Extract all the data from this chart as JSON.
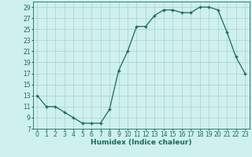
{
  "x": [
    0,
    1,
    2,
    3,
    4,
    5,
    6,
    7,
    8,
    9,
    10,
    11,
    12,
    13,
    14,
    15,
    16,
    17,
    18,
    19,
    20,
    21,
    22,
    23
  ],
  "y": [
    13,
    11,
    11,
    10,
    9,
    8,
    8,
    8,
    10.5,
    17.5,
    21,
    25.5,
    25.5,
    27.5,
    28.5,
    28.5,
    28,
    28,
    29,
    29,
    28.5,
    24.5,
    20,
    17
  ],
  "line_color": "#1a6b5a",
  "marker": "+",
  "marker_size": 3.5,
  "bg_color": "#cef0ee",
  "grid_color": "#aacfcc",
  "xlabel": "Humidex (Indice chaleur)",
  "xlabel_fontsize": 6.5,
  "xlim": [
    -0.5,
    23.5
  ],
  "ylim": [
    7,
    30
  ],
  "yticks": [
    7,
    9,
    11,
    13,
    15,
    17,
    19,
    21,
    23,
    25,
    27,
    29
  ],
  "xticks": [
    0,
    1,
    2,
    3,
    4,
    5,
    6,
    7,
    8,
    9,
    10,
    11,
    12,
    13,
    14,
    15,
    16,
    17,
    18,
    19,
    20,
    21,
    22,
    23
  ],
  "tick_fontsize": 5.5,
  "line_width": 0.9
}
